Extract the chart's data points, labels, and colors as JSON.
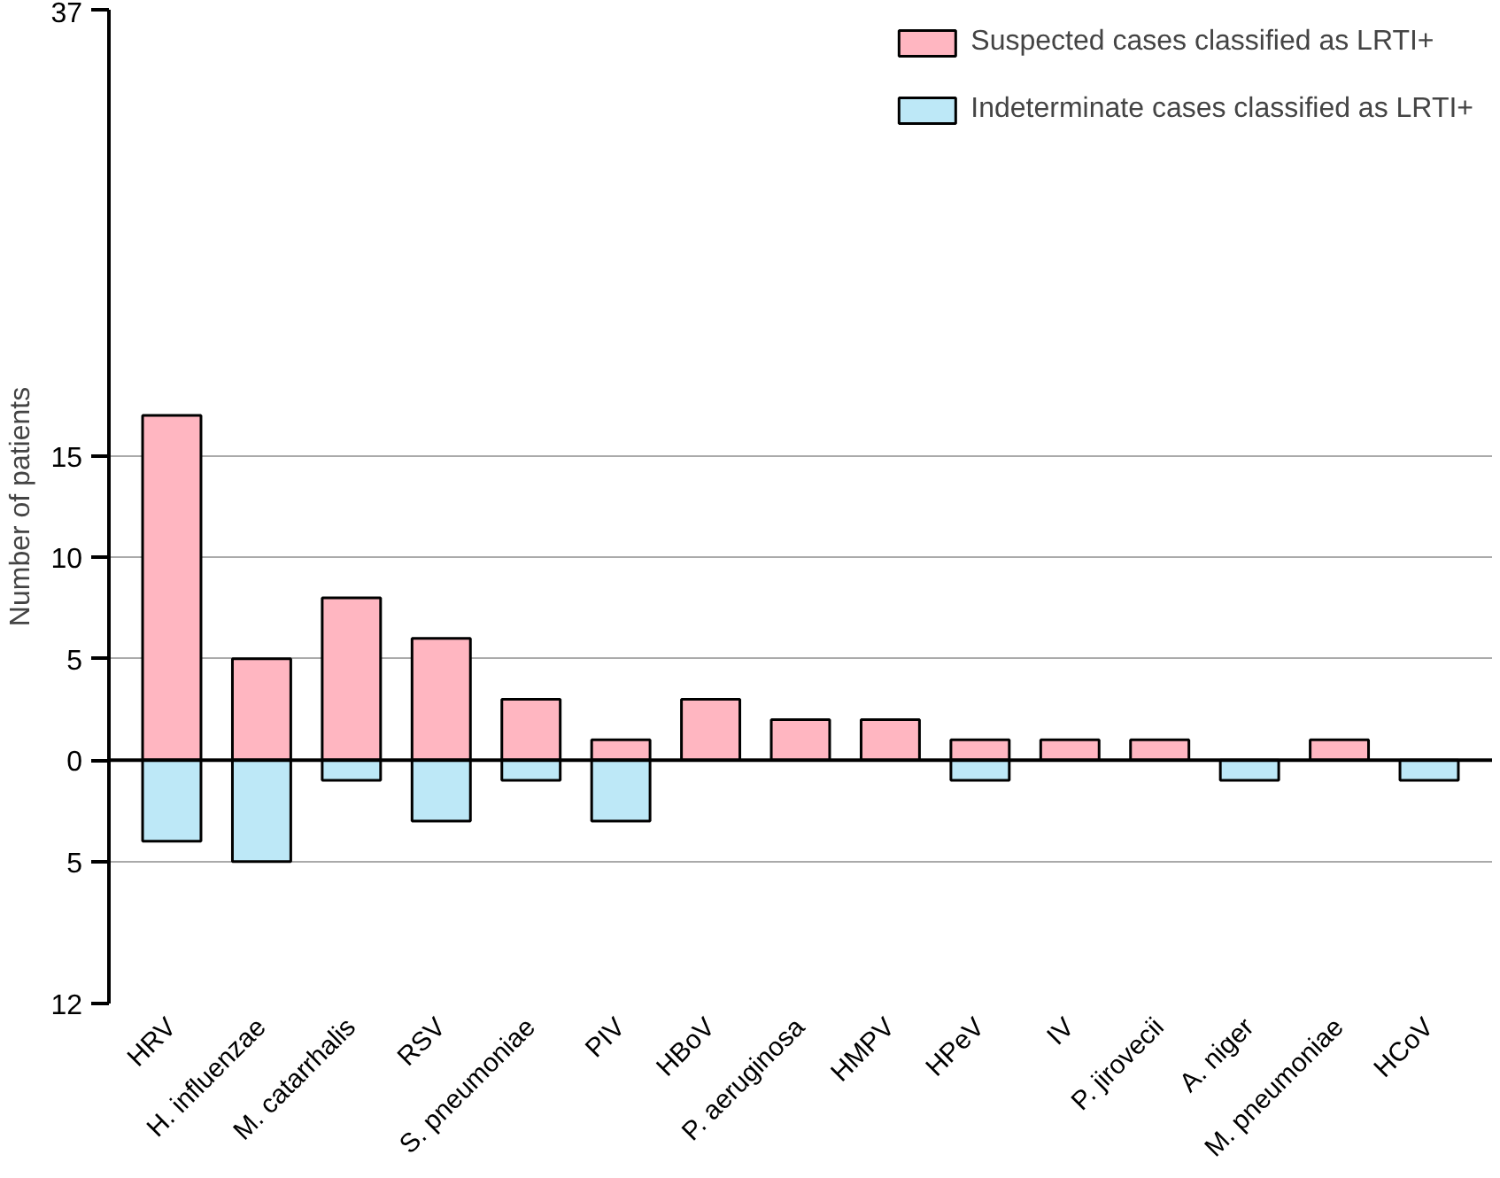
{
  "chart_data": {
    "type": "bar",
    "ylabel": "Number of patients",
    "categories": [
      "HRV",
      "H. influenzae",
      "M. catarrhalis",
      "RSV",
      "S. pneumoniae",
      "PIV",
      "HBoV",
      "P. aeruginosa",
      "HMPV",
      "HPeV",
      "IV",
      "P. jirovecii",
      "A. niger",
      "M. pneumoniae",
      "HCoV"
    ],
    "series": [
      {
        "name": "Suspected cases classified as LRTI+",
        "color": "#ffb6c1",
        "values": [
          17,
          5,
          8,
          6,
          3,
          1,
          3,
          2,
          2,
          1,
          1,
          1,
          null,
          1,
          null
        ]
      },
      {
        "name": "Indeterminate cases classified as LRTI+",
        "color": "#bde8f7",
        "values": [
          -4,
          -5,
          -1,
          -3,
          -1,
          -3,
          null,
          null,
          null,
          -1,
          null,
          null,
          -1,
          null,
          -1
        ]
      }
    ],
    "ylim": [
      -12,
      37
    ],
    "yticks": [
      {
        "value": -12,
        "label": "12"
      },
      {
        "value": -5,
        "label": "5"
      },
      0,
      5,
      10,
      15,
      37
    ],
    "ref_lines": [
      {
        "axis": "y",
        "value": 0,
        "color": "#000000"
      }
    ],
    "grid": "y",
    "legend": "top right"
  }
}
